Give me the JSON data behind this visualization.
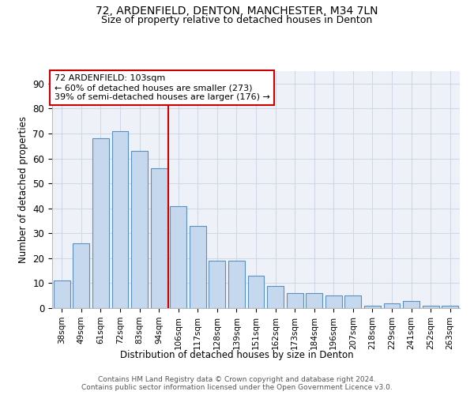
{
  "title1": "72, ARDENFIELD, DENTON, MANCHESTER, M34 7LN",
  "title2": "Size of property relative to detached houses in Denton",
  "xlabel": "Distribution of detached houses by size in Denton",
  "ylabel": "Number of detached properties",
  "categories": [
    "38sqm",
    "49sqm",
    "61sqm",
    "72sqm",
    "83sqm",
    "94sqm",
    "106sqm",
    "117sqm",
    "128sqm",
    "139sqm",
    "151sqm",
    "162sqm",
    "173sqm",
    "184sqm",
    "196sqm",
    "207sqm",
    "218sqm",
    "229sqm",
    "241sqm",
    "252sqm",
    "263sqm"
  ],
  "values": [
    11,
    26,
    68,
    71,
    63,
    56,
    41,
    33,
    19,
    19,
    13,
    9,
    6,
    6,
    5,
    5,
    1,
    2,
    3,
    1,
    1
  ],
  "bar_color": "#c5d8ed",
  "bar_edge_color": "#5a8fc0",
  "marker_index": 6,
  "vline_color": "#cc0000",
  "annotation_lines": [
    "72 ARDENFIELD: 103sqm",
    "← 60% of detached houses are smaller (273)",
    "39% of semi-detached houses are larger (176) →"
  ],
  "annotation_box_color": "white",
  "annotation_box_edge": "#cc0000",
  "ylim": [
    0,
    95
  ],
  "yticks": [
    0,
    10,
    20,
    30,
    40,
    50,
    60,
    70,
    80,
    90
  ],
  "grid_color": "#d0d8e8",
  "background_color": "#eef2f8",
  "footer": "Contains HM Land Registry data © Crown copyright and database right 2024.\nContains public sector information licensed under the Open Government Licence v3.0.",
  "title1_fontsize": 10,
  "title2_fontsize": 9
}
